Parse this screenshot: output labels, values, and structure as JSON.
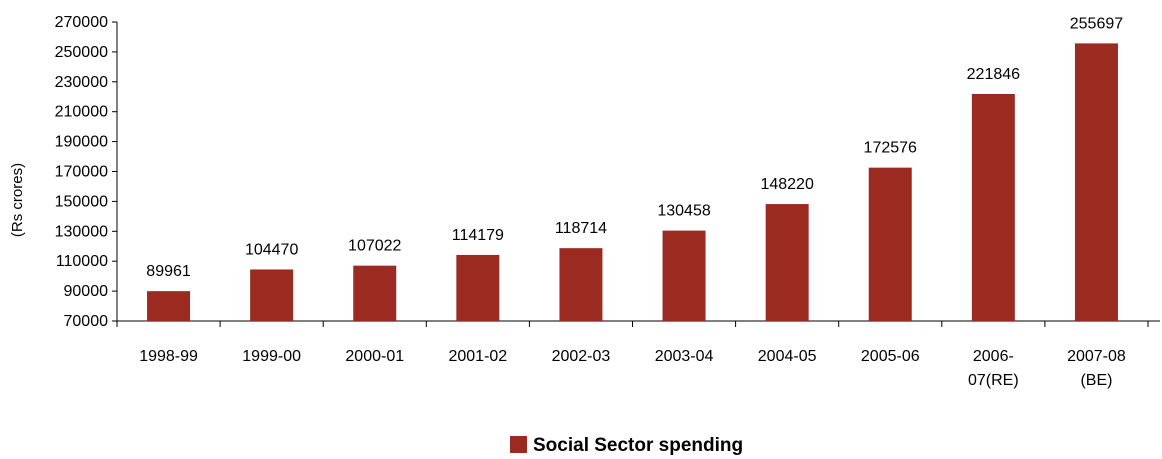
{
  "chart_data": {
    "type": "bar",
    "categories": [
      [
        "1998-99"
      ],
      [
        "1999-00"
      ],
      [
        "2000-01"
      ],
      [
        "2001-02"
      ],
      [
        "2002-03"
      ],
      [
        "2003-04"
      ],
      [
        "2004-05"
      ],
      [
        "2005-06"
      ],
      [
        "2006-",
        "07(RE)"
      ],
      [
        "2007-08",
        "(BE)"
      ]
    ],
    "series": [
      {
        "name": "Social Sector spending",
        "values": [
          89961,
          104470,
          107022,
          114179,
          118714,
          130458,
          148220,
          172576,
          221846,
          255697
        ],
        "color": "#9b2a21"
      }
    ],
    "data_labels": [
      "89961",
      "104470",
      "107022",
      "114179",
      "118714",
      "130458",
      "148220",
      "172576",
      "221846",
      "255697"
    ],
    "y_ticks": [
      "70000",
      "90000",
      "110000",
      "130000",
      "150000",
      "170000",
      "190000",
      "210000",
      "230000",
      "250000",
      "270000"
    ],
    "ylim": [
      70000,
      270000
    ],
    "ylabel": "(Rs crores)",
    "xlabel": "",
    "title": "",
    "grid": false,
    "legend_position": "bottom-center"
  }
}
